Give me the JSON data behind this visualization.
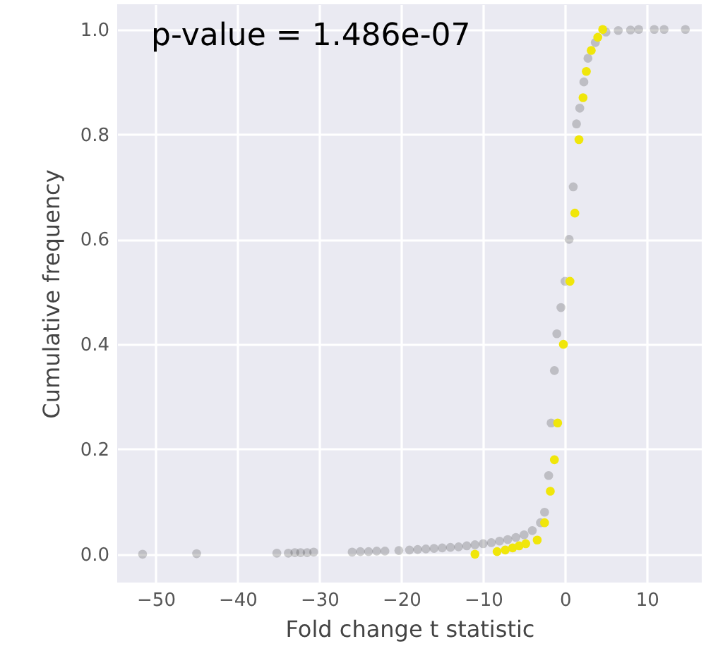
{
  "chart_data": {
    "type": "scatter",
    "xlabel": "Fold change t statistic",
    "ylabel": "Cumulative frequency",
    "annotations": [
      "p-value = 1.486e-07"
    ],
    "xlim": [
      -54.7,
      16.7
    ],
    "ylim": [
      -0.054,
      1.048
    ],
    "xticks": [
      -50,
      -40,
      -30,
      -20,
      -10,
      0,
      10
    ],
    "yticks": [
      {
        "value": 0,
        "label": "0.0"
      },
      {
        "value": 0.2,
        "label": "0.2"
      },
      {
        "value": 0.4,
        "label": "0.4"
      },
      {
        "value": 0.6,
        "label": "0.6"
      },
      {
        "value": 0.8,
        "label": "0.8"
      },
      {
        "value": 1,
        "label": "1.0"
      }
    ],
    "grid": true,
    "marker": "circle",
    "series": [
      {
        "color": "#3a3a3a",
        "x": [
          -51.6,
          -45,
          -35.2,
          -33.8,
          -33,
          -32.3,
          -31.5,
          -30.7,
          -26,
          -25,
          -24,
          -23,
          -22,
          -20.3,
          -19,
          -18,
          -17,
          -16,
          -15,
          -14,
          -13,
          -12,
          -11,
          -10,
          -9,
          -8,
          -7,
          -6,
          -5,
          -4,
          -3,
          -2.5,
          -2,
          -1.7,
          -1.3,
          -1,
          -0.5,
          0,
          0.5,
          1,
          1.4,
          1.8,
          2.3,
          2.8,
          3.7,
          5,
          6.5,
          8,
          9,
          10.9,
          12.1,
          14.7
        ],
        "values": [
          0,
          0.001,
          0.002,
          0.002,
          0.003,
          0.003,
          0.003,
          0.004,
          0.004,
          0.005,
          0.005,
          0.006,
          0.006,
          0.007,
          0.008,
          0.009,
          0.01,
          0.011,
          0.012,
          0.013,
          0.014,
          0.016,
          0.018,
          0.02,
          0.022,
          0.025,
          0.028,
          0.032,
          0.037,
          0.045,
          0.06,
          0.08,
          0.15,
          0.25,
          0.35,
          0.42,
          0.47,
          0.52,
          0.6,
          0.7,
          0.82,
          0.85,
          0.9,
          0.945,
          0.975,
          0.995,
          0.998,
          0.999,
          1.0,
          1.0,
          1.0,
          1.0
        ]
      },
      {
        "color": "#f0e60a",
        "x": [
          -11,
          -8.3,
          -7.3,
          -6.4,
          -5.6,
          -4.8,
          -3.4,
          -2.5,
          -1.8,
          -1.3,
          -0.9,
          -0.2,
          0.6,
          1.2,
          1.7,
          2.2,
          2.6,
          3.2,
          4,
          4.6
        ],
        "values": [
          0.0,
          0.005,
          0.008,
          0.012,
          0.016,
          0.02,
          0.027,
          0.06,
          0.12,
          0.18,
          0.25,
          0.4,
          0.52,
          0.65,
          0.79,
          0.87,
          0.92,
          0.96,
          0.985,
          1.0
        ]
      }
    ]
  }
}
